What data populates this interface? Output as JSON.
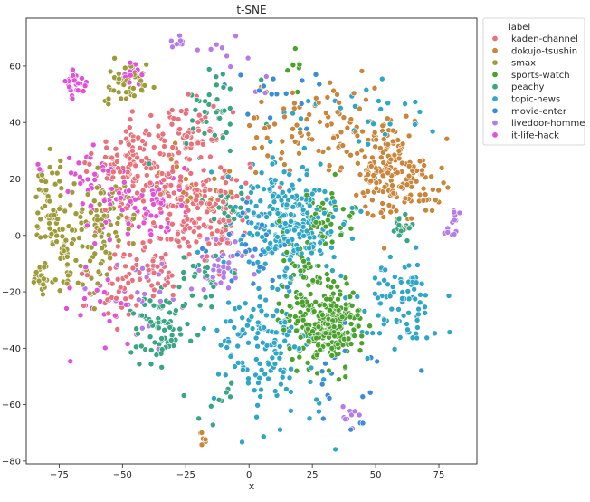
{
  "chart_data": {
    "type": "scatter",
    "title": "t-SNE",
    "xlabel": "x",
    "ylabel": "",
    "xlim": [
      -88,
      90
    ],
    "ylim": [
      -81,
      77
    ],
    "x_ticks": [
      -75,
      -50,
      -25,
      0,
      25,
      50,
      75
    ],
    "y_ticks": [
      -80,
      -60,
      -40,
      -20,
      0,
      20,
      40,
      60
    ],
    "grid": false,
    "legend_placement": "outside-top-right",
    "legend_title": "label",
    "series": [
      {
        "name": "kaden-channel",
        "color": "#e8727c",
        "clusters": [
          [
            -20,
            10,
            10,
            9,
            180
          ],
          [
            -45,
            25,
            8,
            7,
            110
          ],
          [
            -25,
            35,
            9,
            8,
            70
          ],
          [
            -40,
            -10,
            8,
            7,
            60
          ],
          [
            -55,
            -25,
            6,
            6,
            20
          ]
        ]
      },
      {
        "name": "dokujo-tsushin",
        "color": "#c9853a",
        "clusters": [
          [
            55,
            25,
            8,
            9,
            170
          ],
          [
            25,
            38,
            14,
            8,
            80
          ],
          [
            68,
            15,
            4,
            5,
            30
          ],
          [
            -20,
            20,
            8,
            8,
            25
          ],
          [
            -18,
            -72,
            1.2,
            1.2,
            6
          ]
        ]
      },
      {
        "name": "smax",
        "color": "#9d9b3a",
        "clusters": [
          [
            -78,
            10,
            4,
            8,
            70
          ],
          [
            -58,
            5,
            8,
            8,
            90
          ],
          [
            -48,
            53,
            4,
            4,
            50
          ],
          [
            -82,
            -15,
            1.5,
            2.2,
            25
          ],
          [
            -70,
            -10,
            5,
            7,
            40
          ]
        ]
      },
      {
        "name": "sports-watch",
        "color": "#4aa12e",
        "clusters": [
          [
            32,
            -32,
            6,
            7,
            240
          ],
          [
            22,
            -10,
            6,
            7,
            40
          ],
          [
            18,
            -28,
            4,
            4,
            30
          ],
          [
            30,
            5,
            6,
            5,
            40
          ],
          [
            18,
            60,
            2,
            3,
            8
          ]
        ]
      },
      {
        "name": "peachy",
        "color": "#39a680",
        "clusters": [
          [
            -35,
            -33,
            6,
            6,
            70
          ],
          [
            -12,
            45,
            7,
            7,
            40
          ],
          [
            -18,
            -15,
            4,
            4,
            25
          ],
          [
            60,
            2,
            2,
            2,
            20
          ],
          [
            -10,
            10,
            4,
            4,
            20
          ],
          [
            -10,
            -60,
            6,
            5,
            10
          ]
        ]
      },
      {
        "name": "topic-news",
        "color": "#2fa6c6",
        "clusters": [
          [
            15,
            5,
            11,
            11,
            260
          ],
          [
            5,
            -40,
            10,
            10,
            120
          ],
          [
            58,
            -25,
            8,
            8,
            90
          ],
          [
            40,
            45,
            20,
            8,
            30
          ],
          [
            20,
            -60,
            10,
            8,
            20
          ]
        ]
      },
      {
        "name": "movie-enter",
        "color": "#3c8bd6",
        "clusters": [
          [
            0,
            -5,
            7,
            6,
            30
          ],
          [
            10,
            50,
            10,
            8,
            15
          ],
          [
            40,
            -50,
            12,
            10,
            20
          ]
        ]
      },
      {
        "name": "livedoor-homme",
        "color": "#b57be6",
        "clusters": [
          [
            -12,
            -10,
            6,
            6,
            40
          ],
          [
            -28,
            68,
            1.2,
            1.0,
            8
          ],
          [
            81,
            4,
            1.5,
            2.5,
            15
          ],
          [
            -40,
            -20,
            10,
            10,
            25
          ],
          [
            40,
            -65,
            3,
            2,
            10
          ],
          [
            -5,
            60,
            10,
            10,
            12
          ]
        ]
      },
      {
        "name": "it-life-hack",
        "color": "#e052d6",
        "clusters": [
          [
            -68,
            54,
            2,
            2.5,
            30
          ],
          [
            -50,
            10,
            6,
            6,
            40
          ],
          [
            -35,
            10,
            5,
            5,
            40
          ],
          [
            -65,
            20,
            5,
            5,
            30
          ],
          [
            -47,
            57,
            2,
            2,
            15
          ],
          [
            -60,
            -25,
            8,
            8,
            25
          ],
          [
            -83,
            24,
            1,
            1,
            3
          ]
        ]
      }
    ]
  }
}
